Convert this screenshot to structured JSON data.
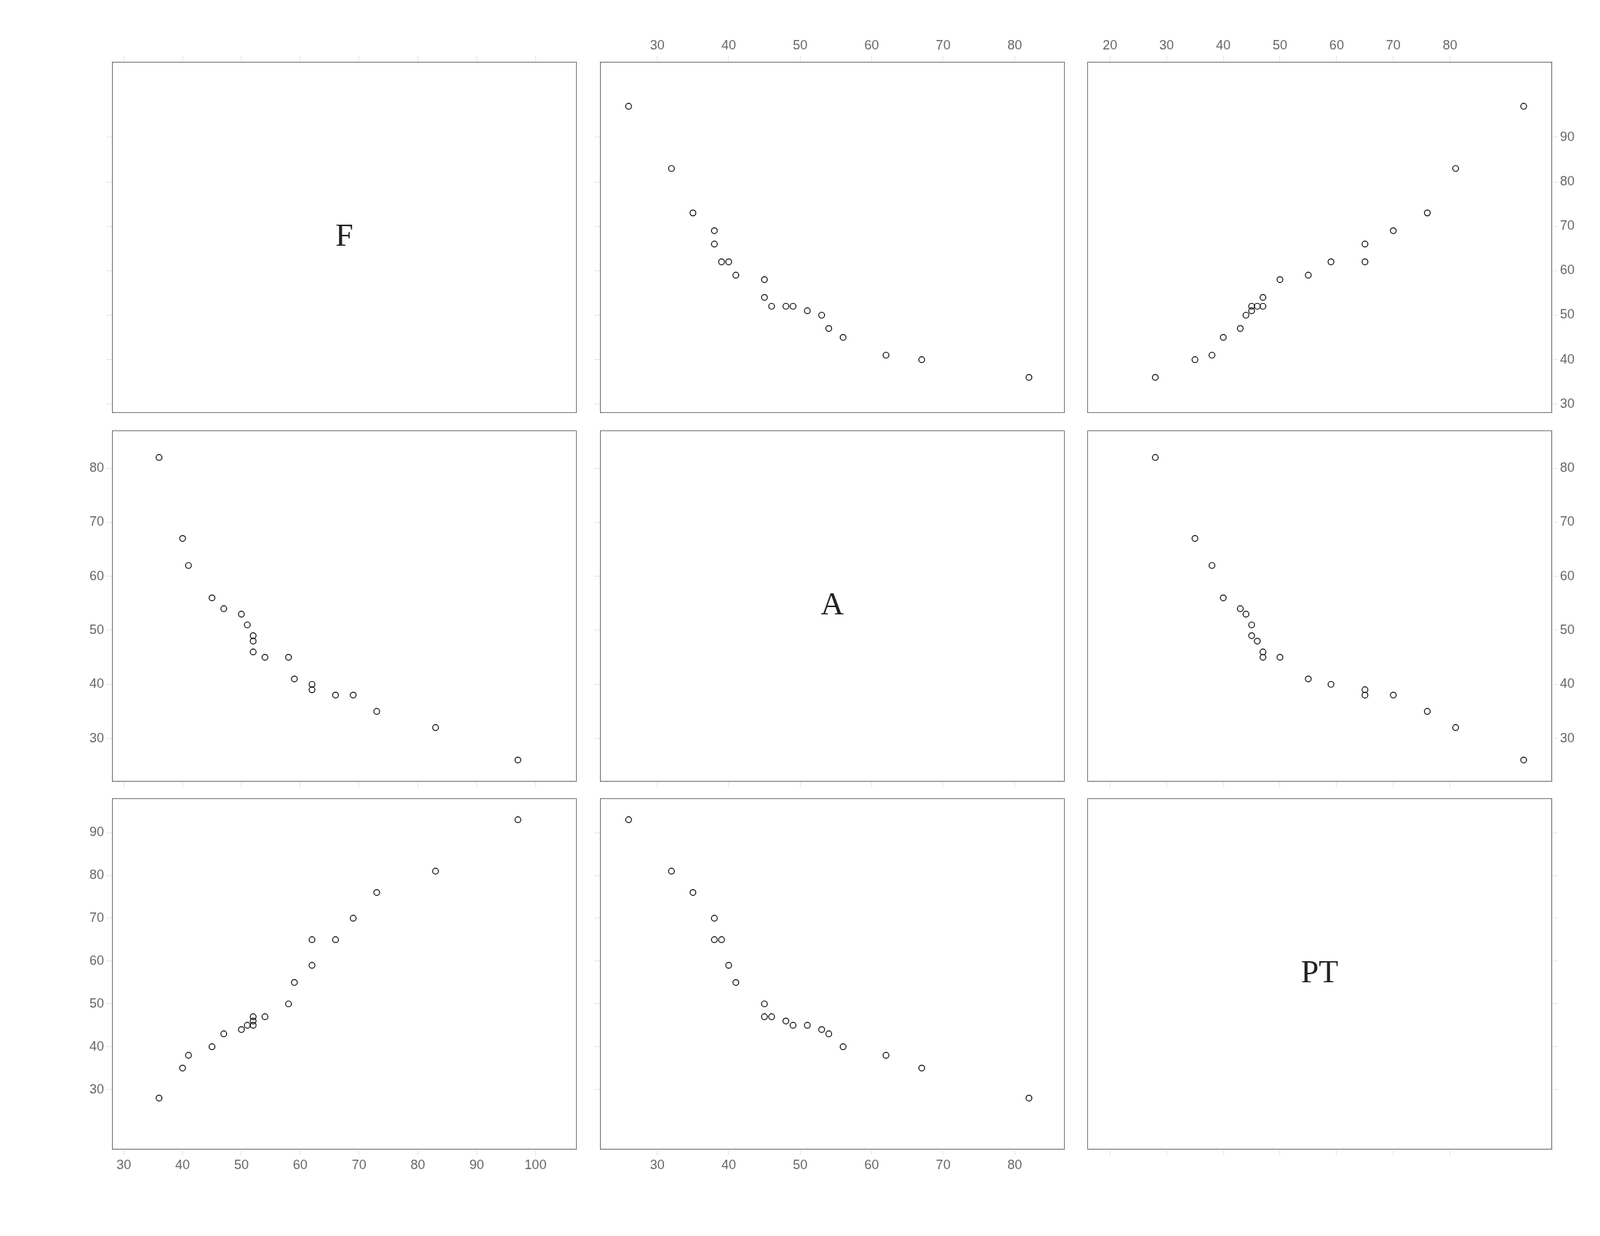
{
  "chart_data": [
    {
      "type": "label",
      "annotations": [
        "F"
      ],
      "xlim": [
        28,
        107
      ],
      "ylim": [
        28,
        107
      ],
      "xticks": [
        30,
        40,
        50,
        60,
        70,
        80,
        90,
        100
      ],
      "yticks": [
        30,
        40,
        50,
        60,
        70,
        80,
        90
      ],
      "grid": false,
      "tick_labels": false
    },
    {
      "type": "scatter",
      "marker": "circle",
      "color": "black",
      "x": [
        26,
        32,
        35,
        38,
        38,
        39,
        40,
        41,
        45,
        45,
        46,
        48,
        49,
        51,
        53,
        54,
        56,
        62,
        67,
        82
      ],
      "values": [
        97,
        83,
        73,
        69,
        66,
        62,
        62,
        59,
        58,
        54,
        52,
        52,
        52,
        51,
        50,
        47,
        45,
        41,
        40,
        36
      ],
      "xlim": [
        22,
        87
      ],
      "ylim": [
        28,
        107
      ],
      "xticks": [
        30,
        40,
        50,
        60,
        70,
        80
      ],
      "yticks": [
        30,
        40,
        50,
        60,
        70,
        80,
        90
      ],
      "grid": false,
      "tick_labels": "x"
    },
    {
      "type": "scatter",
      "marker": "circle",
      "color": "black",
      "x": [
        93,
        81,
        76,
        70,
        65,
        65,
        59,
        55,
        50,
        47,
        47,
        46,
        45,
        45,
        44,
        43,
        40,
        38,
        35,
        28
      ],
      "values": [
        97,
        83,
        73,
        69,
        66,
        62,
        62,
        59,
        58,
        54,
        52,
        52,
        52,
        51,
        50,
        47,
        45,
        41,
        40,
        36
      ],
      "xlim": [
        16,
        98
      ],
      "ylim": [
        28,
        107
      ],
      "xticks": [
        20,
        30,
        40,
        50,
        60,
        70,
        80
      ],
      "yticks": [
        30,
        40,
        50,
        60,
        70,
        80,
        90
      ],
      "grid": false
    },
    {
      "type": "scatter",
      "marker": "circle",
      "color": "black",
      "x": [
        97,
        83,
        73,
        69,
        66,
        62,
        62,
        59,
        58,
        54,
        52,
        52,
        52,
        51,
        50,
        47,
        45,
        41,
        40,
        36
      ],
      "values": [
        26,
        32,
        35,
        38,
        38,
        39,
        40,
        41,
        45,
        45,
        46,
        48,
        49,
        51,
        53,
        54,
        56,
        62,
        67,
        82
      ],
      "xlim": [
        28,
        107
      ],
      "ylim": [
        22,
        87
      ],
      "xticks": [
        30,
        40,
        50,
        60,
        70,
        80,
        90,
        100
      ],
      "yticks": [
        30,
        40,
        50,
        60,
        70,
        80
      ],
      "grid": false,
      "tick_labels": "y"
    },
    {
      "type": "label",
      "annotations": [
        "A"
      ],
      "xlim": [
        22,
        87
      ],
      "ylim": [
        22,
        87
      ],
      "xticks": [
        30,
        40,
        50,
        60,
        70,
        80
      ],
      "yticks": [
        30,
        40,
        50,
        60,
        70,
        80
      ],
      "grid": false,
      "tick_labels": false
    },
    {
      "type": "scatter",
      "marker": "circle",
      "color": "black",
      "x": [
        93,
        81,
        76,
        70,
        65,
        65,
        59,
        55,
        50,
        47,
        47,
        46,
        45,
        45,
        44,
        43,
        40,
        38,
        35,
        28
      ],
      "values": [
        26,
        32,
        35,
        38,
        38,
        39,
        40,
        41,
        45,
        45,
        46,
        48,
        49,
        51,
        53,
        54,
        56,
        62,
        67,
        82
      ],
      "xlim": [
        16,
        98
      ],
      "ylim": [
        22,
        87
      ],
      "xticks": [
        20,
        30,
        40,
        50,
        60,
        70,
        80
      ],
      "yticks": [
        30,
        40,
        50,
        60,
        70,
        80
      ],
      "grid": false,
      "tick_labels": "y"
    },
    {
      "type": "scatter",
      "marker": "circle",
      "color": "black",
      "x": [
        97,
        83,
        73,
        69,
        66,
        62,
        62,
        59,
        58,
        54,
        52,
        52,
        52,
        51,
        50,
        47,
        45,
        41,
        40,
        36
      ],
      "values": [
        93,
        81,
        76,
        70,
        65,
        65,
        59,
        55,
        50,
        47,
        47,
        46,
        45,
        45,
        44,
        43,
        40,
        38,
        35,
        28
      ],
      "xlim": [
        28,
        107
      ],
      "ylim": [
        16,
        98
      ],
      "xticks": [
        30,
        40,
        50,
        60,
        70,
        80,
        90,
        100
      ],
      "yticks": [
        30,
        40,
        50,
        60,
        70,
        80,
        90
      ],
      "grid": false
    },
    {
      "type": "scatter",
      "marker": "circle",
      "color": "black",
      "x": [
        26,
        32,
        35,
        38,
        38,
        39,
        40,
        41,
        45,
        45,
        46,
        48,
        49,
        51,
        53,
        54,
        56,
        62,
        67,
        82
      ],
      "values": [
        93,
        81,
        76,
        70,
        65,
        65,
        59,
        55,
        50,
        47,
        47,
        46,
        45,
        45,
        44,
        43,
        40,
        38,
        35,
        28
      ],
      "xlim": [
        22,
        87
      ],
      "ylim": [
        16,
        98
      ],
      "xticks": [
        30,
        40,
        50,
        60,
        70,
        80
      ],
      "yticks": [
        30,
        40,
        50,
        60,
        70,
        80,
        90
      ],
      "grid": false,
      "tick_labels": "x"
    },
    {
      "type": "label",
      "annotations": [
        "PT"
      ],
      "xlim": [
        16,
        98
      ],
      "ylim": [
        16,
        98
      ],
      "xticks": [
        20,
        30,
        40,
        50,
        60,
        70,
        80
      ],
      "yticks": [
        30,
        40,
        50,
        60,
        70,
        80,
        90
      ],
      "grid": false,
      "tick_labels": false
    }
  ]
}
